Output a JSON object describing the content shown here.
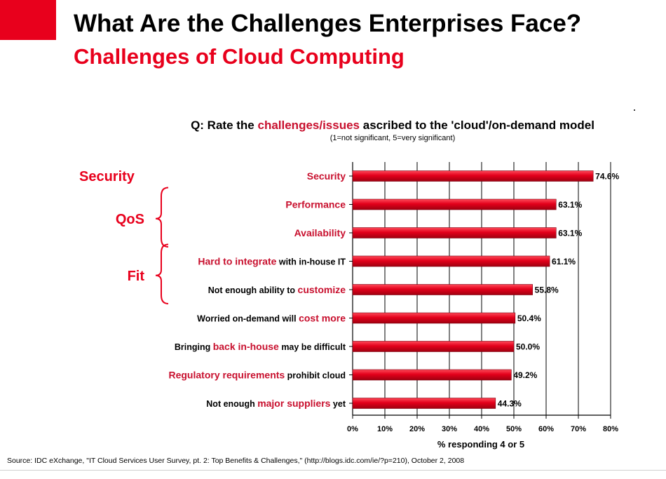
{
  "slide": {
    "title": "What Are the Challenges Enterprises Face?",
    "subtitle": "Challenges of Cloud Computing",
    "source": "Source: IDC eXchange, \"IT Cloud Services User Survey, pt. 2: Top Benefits & Challenges,\" (http://blogs.idc.com/ie/?p=210), October 2, 2008"
  },
  "colors": {
    "accent": "#e8001c",
    "bar": "#e3001b",
    "highlight_text": "#c8102e"
  },
  "chart_data": {
    "type": "bar",
    "orientation": "horizontal",
    "title": {
      "prefix": "Q: Rate the ",
      "highlight": "challenges/issues",
      "suffix": " ascribed to the 'cloud'/on-demand model"
    },
    "title_note": "(1=not significant, 5=very significant)",
    "xlabel": "% responding 4 or 5",
    "ylabel": "",
    "xlim": [
      0,
      80
    ],
    "xticks": [
      "0%",
      "10%",
      "20%",
      "30%",
      "40%",
      "50%",
      "60%",
      "70%",
      "80%"
    ],
    "grid": true,
    "categories": [
      [
        {
          "t": "Security",
          "h": true
        }
      ],
      [
        {
          "t": "Performance",
          "h": true
        }
      ],
      [
        {
          "t": "Availability",
          "h": true
        }
      ],
      [
        {
          "t": "Hard to integrate",
          "h": true
        },
        {
          "t": " with in-house IT",
          "h": false
        }
      ],
      [
        {
          "t": "Not enough ability to ",
          "h": false
        },
        {
          "t": "customize",
          "h": true
        }
      ],
      [
        {
          "t": "Worried on-demand will ",
          "h": false
        },
        {
          "t": "cost more",
          "h": true
        }
      ],
      [
        {
          "t": "Bringing ",
          "h": false
        },
        {
          "t": "back in-house",
          "h": true
        },
        {
          "t": " may be difficult",
          "h": false
        }
      ],
      [
        {
          "t": "Regulatory requirements",
          "h": true
        },
        {
          "t": " prohibit cloud",
          "h": false
        }
      ],
      [
        {
          "t": "Not enough ",
          "h": false
        },
        {
          "t": "major suppliers",
          "h": true
        },
        {
          "t": " yet",
          "h": false
        }
      ]
    ],
    "values": [
      74.6,
      63.1,
      63.1,
      61.1,
      55.8,
      50.4,
      50.0,
      49.2,
      44.3
    ],
    "value_labels": [
      "74.6%",
      "63.1%",
      "63.1%",
      "61.1%",
      "55.8%",
      "50.4%",
      "50.0%",
      "49.2%",
      "44.3%"
    ],
    "groups": [
      {
        "label": "Security",
        "rows": [
          0
        ],
        "brace": false
      },
      {
        "label": "QoS",
        "rows": [
          1,
          2
        ],
        "brace": true
      },
      {
        "label": "Fit",
        "rows": [
          3,
          4
        ],
        "brace": true
      }
    ]
  }
}
